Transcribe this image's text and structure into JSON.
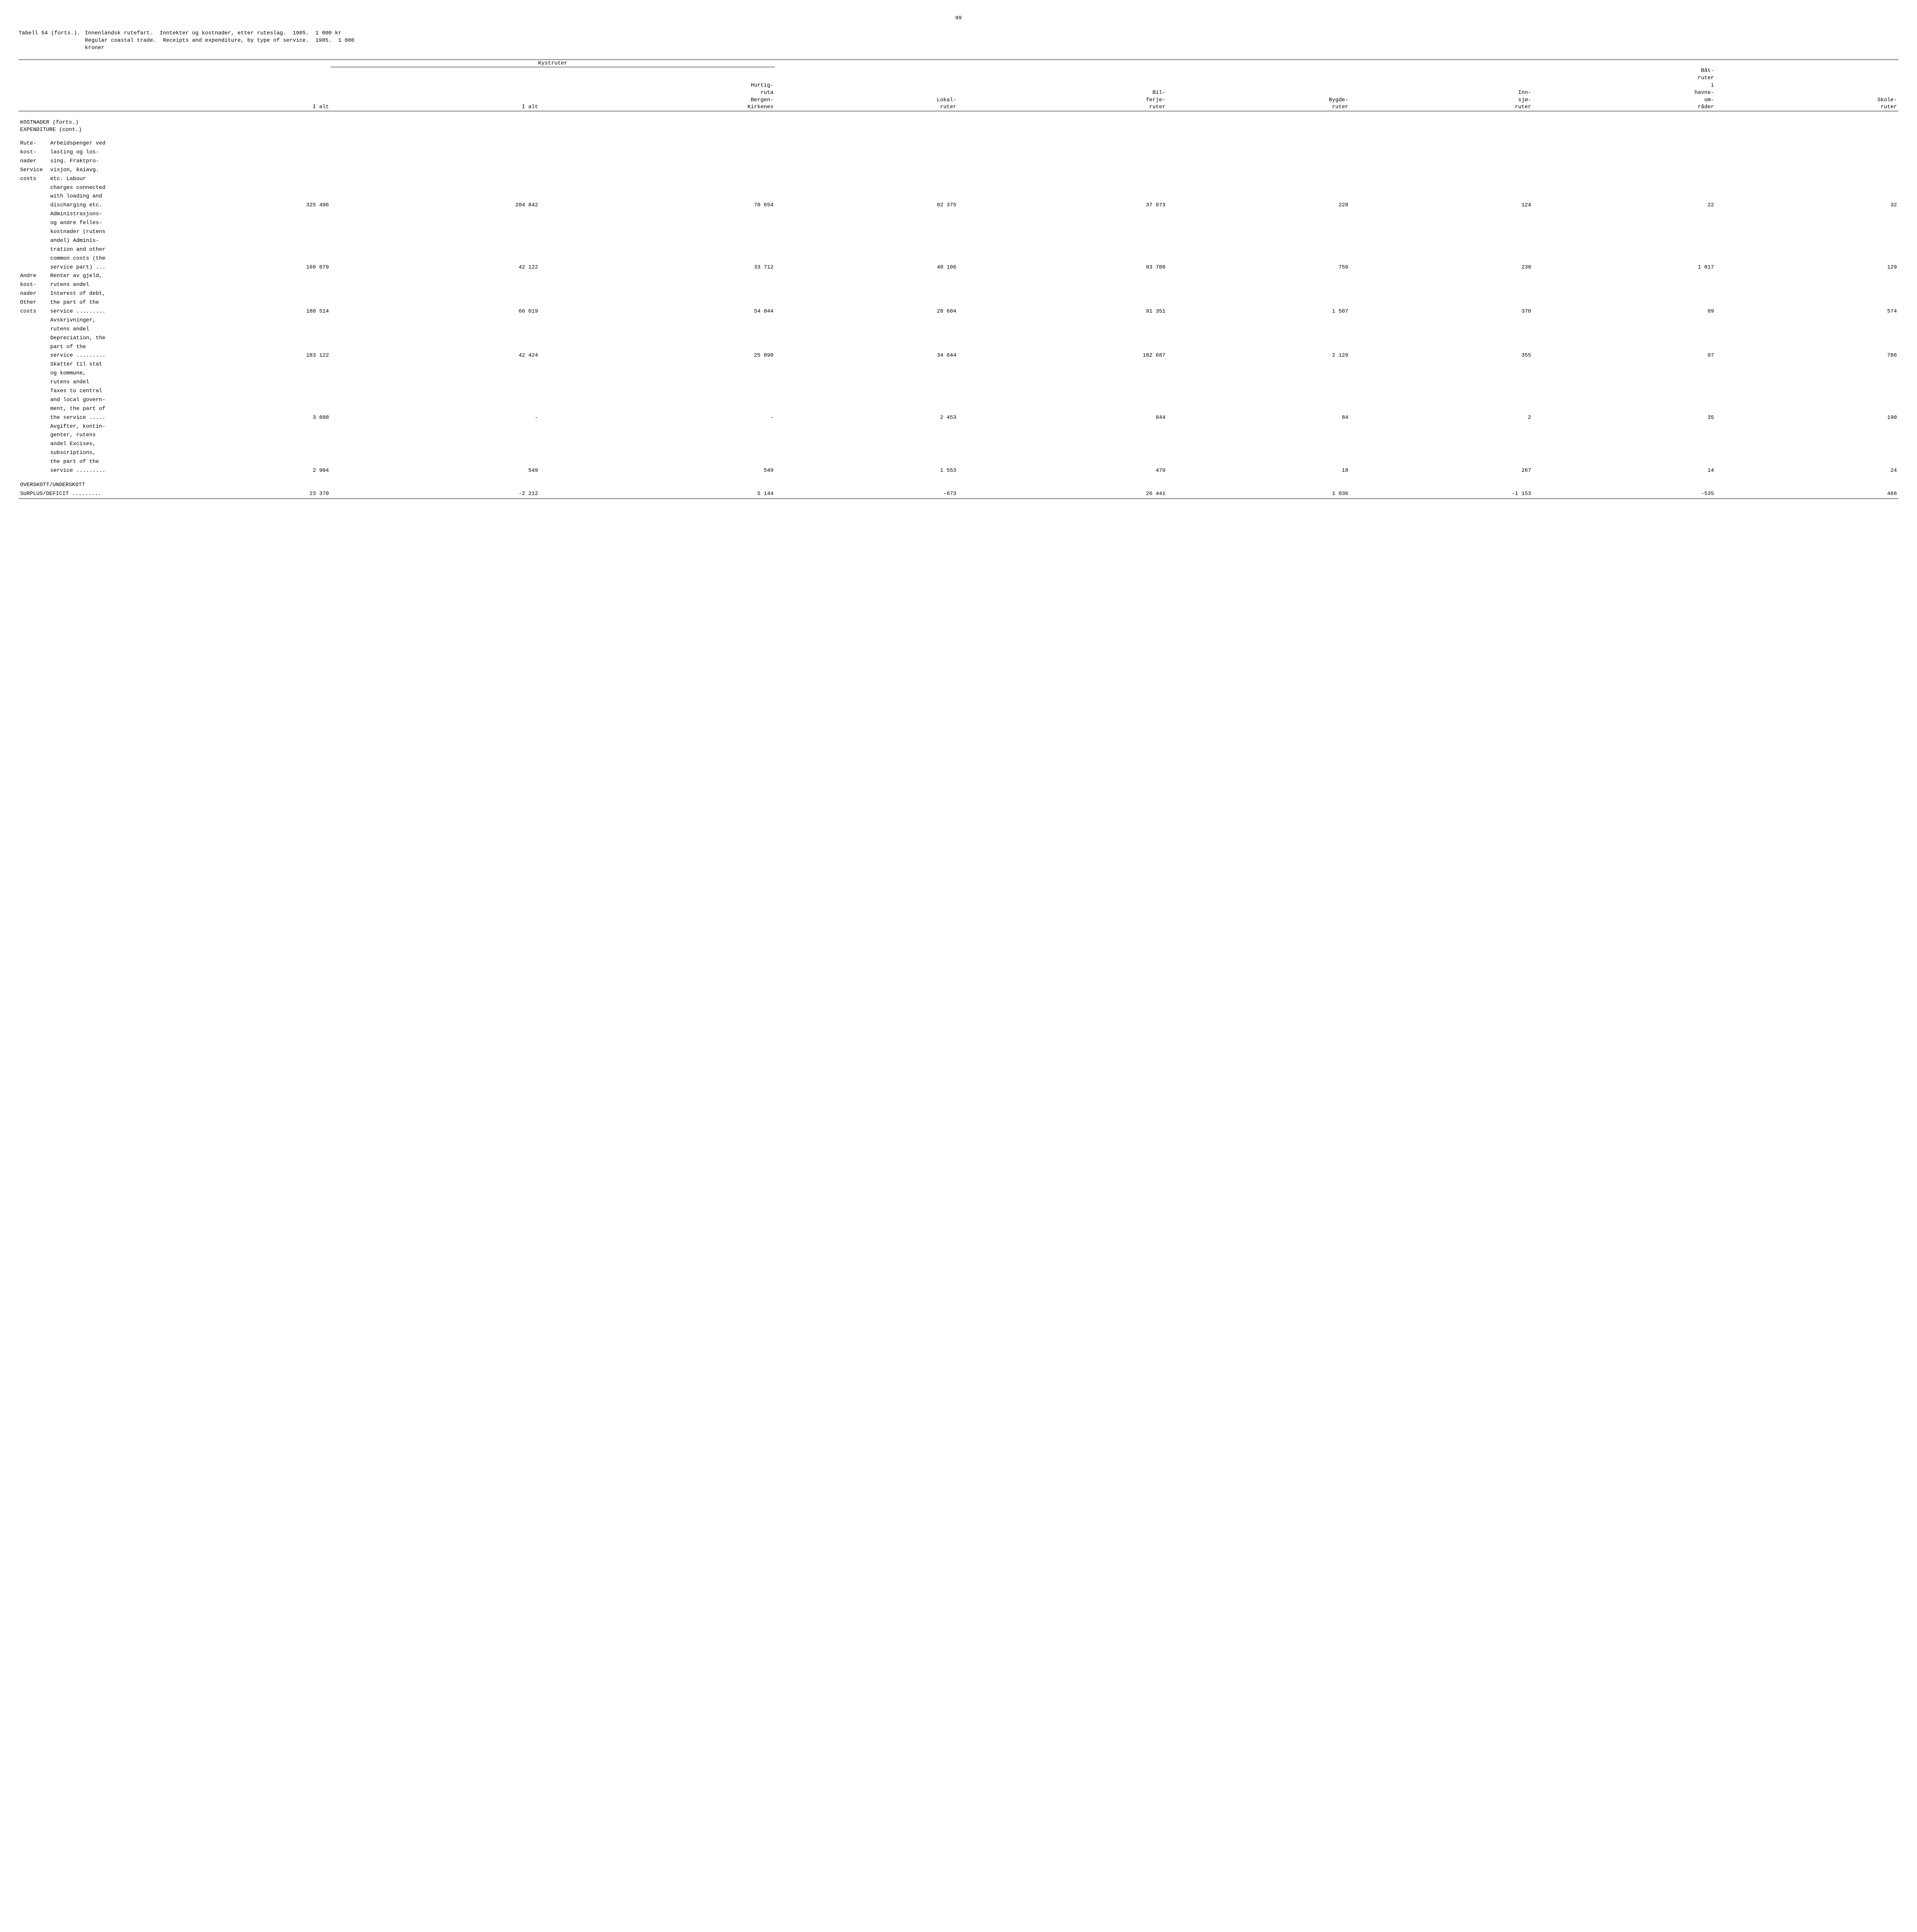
{
  "page_number": "99",
  "title": {
    "lead": "Tabell 54 (forts.).",
    "line1": "Innenlandsk rutefart.  Inntekter og kostnader, etter ruteslag.  1985.  1 000 kr",
    "line2": "Regular coastal trade.  Receipts and expenditure, by type of service.  1985.  1 000",
    "line3": "kroner"
  },
  "headers": {
    "ialt": "I alt",
    "kystruter": "Kystruter",
    "kyst_ialt": "I alt",
    "hurtig": "Hurtig-\nruta\nBergen-\nKirkenes",
    "lokal": "Lokal-\nruter",
    "bilferje": "Bil-\nferje-\nruter",
    "bygde": "Bygde-\nruter",
    "innsjo": "Inn-\nsjø-\nruter",
    "bat": "Båt-\nruter\ni\nhavne-\nom-\nråder",
    "skole": "Skole-\nruter"
  },
  "section": {
    "kostnader_nor": "KOSTNADER (forts.)",
    "kostnader_eng": "EXPENDITURE (cont.)"
  },
  "categories": {
    "rute": "Rute-\nkost-\nnader\nService\ncosts",
    "andre": "Andre\nkost-\nnader\nOther\ncosts",
    "overskott": "OVERSKOTT/UNDERSKOTT\nSURPLUS/DEFICIT ........."
  },
  "rows": [
    {
      "cat": "rute",
      "desc_pre": "Arbeidspenger ved\nlasting og los-\nsing. Fraktpro-\nvisjon, kaiavg.\netc.   Labour\ncharges connected\nwith loading and",
      "desc_val": "discharging etc.",
      "values": [
        "325 496",
        "204 842",
        "70 654",
        "82 375",
        "37 873",
        "228",
        "124",
        "22",
        "32"
      ]
    },
    {
      "desc_pre": "Administrasjons-\nog andre felles-\nkostnader (rutens\nandel)   Adminis-\ntration and other\ncommon costs (the",
      "desc_val": "service part) ...",
      "values": [
        "168 079",
        "42 122",
        "33 712",
        "40 106",
        "83 708",
        "759",
        "238",
        "1 017",
        "129"
      ]
    },
    {
      "cat": "andre",
      "desc_pre": "Renter av gjeld,\nrutens andel\nInterest of debt,\nthe part of the",
      "desc_val": "service .........",
      "values": [
        "188 514",
        "66 019",
        "54 044",
        "28 604",
        "91 351",
        "1 507",
        "370",
        "89",
        "574"
      ]
    },
    {
      "desc_pre": "Avskrivninger,\nrutens andel\nDepreciation, the\npart of the",
      "desc_val": "service .........",
      "values": [
        "183 122",
        "42 424",
        "25 090",
        "34 644",
        "102 687",
        "2 129",
        "355",
        "97",
        "786"
      ]
    },
    {
      "desc_pre": "Skatter til stat\nog kommune,\nrutens andel\nTaxes to central\nand local govern-\nment, the part of",
      "desc_val": "the service .....",
      "values": [
        "3 608",
        "-",
        "-",
        "2 453",
        "844",
        "84",
        "2",
        "35",
        "190"
      ]
    },
    {
      "desc_pre": "Avgifter, kontin-\ngenter, rutens\nandel   Excises,\nsubscriptions,\nthe part of the",
      "desc_val": "service .........",
      "values": [
        "2 904",
        "549",
        "549",
        "1 553",
        "479",
        "18",
        "267",
        "14",
        "24"
      ]
    }
  ],
  "surplus_row": {
    "values": [
      "23 370",
      "-2 212",
      "5 144",
      "-673",
      "26 441",
      "1 036",
      "-1 153",
      "-535",
      "466"
    ]
  }
}
